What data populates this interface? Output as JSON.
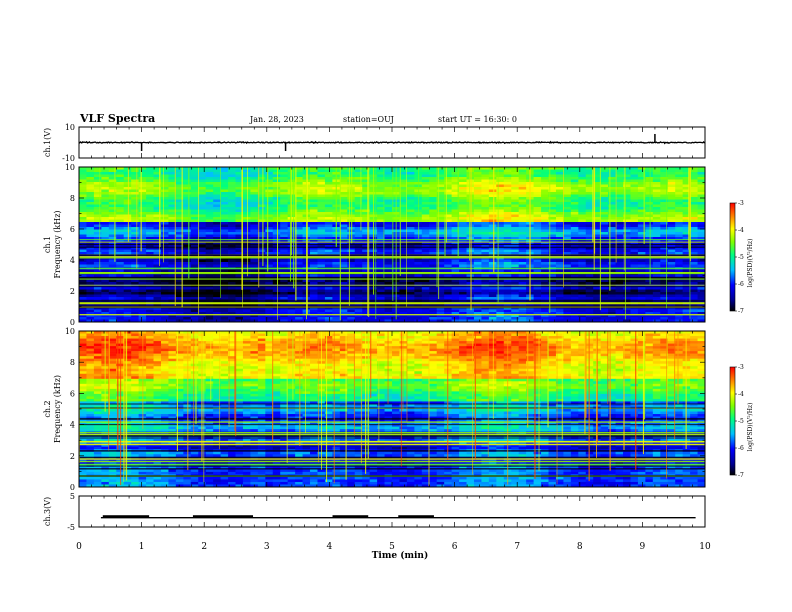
{
  "header": {
    "title": "VLF Spectra",
    "date": "Jan. 28, 2023",
    "station": "station=OUJ",
    "start": "start UT =  16:30: 0"
  },
  "colors": {
    "background": "#ffffff",
    "axes": "#000000",
    "colormap": [
      "#000000",
      "#00008f",
      "#0000ff",
      "#00bfff",
      "#00ff7f",
      "#7fff00",
      "#ffff00",
      "#ff7f00",
      "#ff0000"
    ]
  },
  "chart_data": [
    {
      "type": "line",
      "panel": "ch1",
      "ylabel": "ch.1(V)",
      "ylim": [
        -10,
        10
      ],
      "yticks": [
        "10",
        "-10"
      ],
      "baseline_value": 0,
      "spikes_x_min": [
        1.0,
        3.3,
        9.2
      ],
      "xlim": [
        0,
        10
      ]
    },
    {
      "type": "heatmap",
      "panel": "ch2",
      "ylabel_line1": "ch.1",
      "ylabel_line2": "Frequency (kHz)",
      "ylim": [
        0,
        10
      ],
      "yticks": [
        "0",
        "2",
        "4",
        "6",
        "8",
        "10"
      ],
      "xlim": [
        0,
        10
      ],
      "colorbar": {
        "label": "log(PSD)(V²/Hz)",
        "range": [
          -7,
          -3
        ],
        "ticks": [
          "-3",
          "-4",
          "-5",
          "-6",
          "-7"
        ]
      }
    },
    {
      "type": "heatmap",
      "panel": "ch3",
      "ylabel_line1": "ch.2",
      "ylabel_line2": "Frequency (kHz)",
      "ylim": [
        0,
        10
      ],
      "yticks": [
        "0",
        "2",
        "4",
        "6",
        "8",
        "10"
      ],
      "xlim": [
        0,
        10
      ],
      "colorbar": {
        "label": "log(PSD)(V²/Hz)",
        "range": [
          -7,
          -3
        ],
        "ticks": [
          "-3",
          "-4",
          "-5",
          "-6",
          "-7"
        ]
      }
    },
    {
      "type": "line",
      "panel": "ch4",
      "ylabel": "ch.3(V)",
      "ylim": [
        -5,
        5
      ],
      "yticks": [
        "5",
        "-5"
      ],
      "baseline_value": -2.0,
      "high_value": -1.2,
      "pulses_min": [
        [
          0.38,
          1.12
        ],
        [
          1.82,
          2.78
        ],
        [
          4.05,
          4.62
        ],
        [
          5.1,
          5.67
        ]
      ],
      "xlim": [
        0,
        10
      ]
    }
  ],
  "xaxis": {
    "label": "Time (min)",
    "ticks": [
      "0",
      "1",
      "2",
      "3",
      "4",
      "5",
      "6",
      "7",
      "8",
      "9",
      "10"
    ]
  }
}
